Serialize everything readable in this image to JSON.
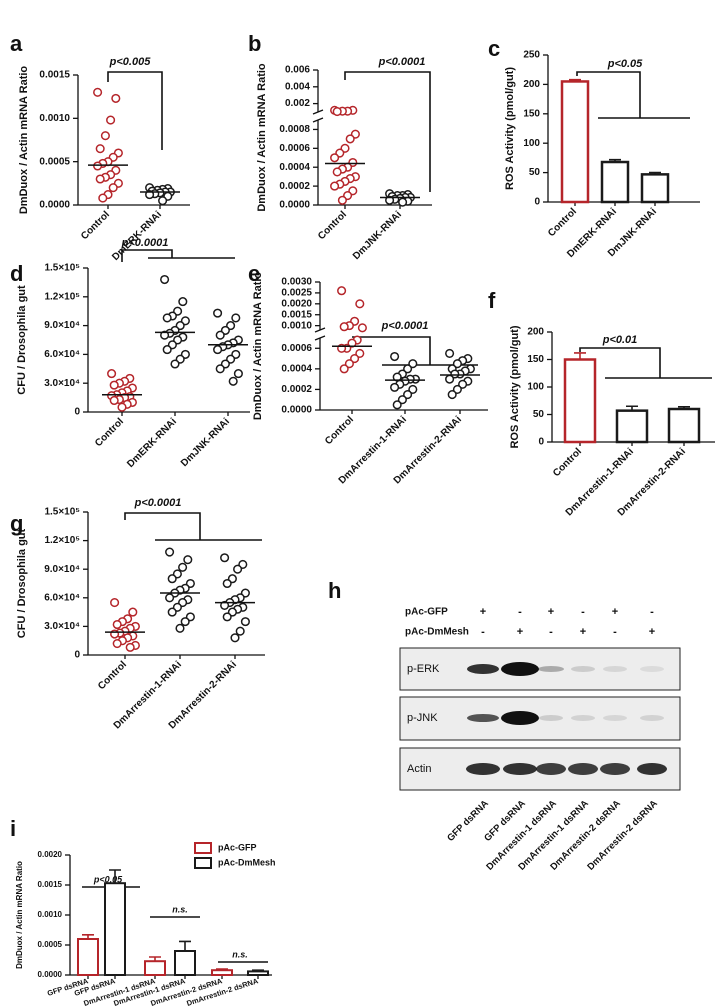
{
  "chart_data": [
    {
      "type": "dot",
      "panel": "a",
      "ylabel": "DmDuox / Actin mRNA Ratio",
      "annotations": [
        "p<0.005"
      ],
      "categories": [
        "Control",
        "DmERK-RNAi"
      ],
      "colors": [
        "#b5252a",
        "#1a1a1a"
      ],
      "values": [
        [
          0.0013,
          0.00123,
          0.00098,
          0.0008,
          0.00065,
          0.0006,
          0.00055,
          0.0005,
          0.00048,
          0.00045,
          0.0004,
          0.00035,
          0.00032,
          0.0003,
          0.00025,
          0.0002,
          0.00012,
          8e-05
        ],
        [
          0.0002,
          0.00019,
          0.00018,
          0.00017,
          0.00016,
          0.00015,
          0.00015,
          0.00014,
          0.00013,
          0.00012,
          0.0001,
          5e-05
        ]
      ],
      "means": [
        0.00046,
        0.00015
      ],
      "ylim": [
        0,
        0.0015
      ],
      "yticks": [
        {
          "value": 0,
          "label": "0.0000"
        },
        {
          "value": 0.0005,
          "label": "0.0005"
        },
        {
          "value": 0.001,
          "label": "0.0010"
        },
        {
          "value": 0.0015,
          "label": "0.0015"
        }
      ]
    },
    {
      "type": "dot",
      "panel": "b",
      "ylabel": "DmDuox / Actin mRNA Ratio",
      "annotations": [
        "p<0.0001"
      ],
      "categories": [
        "Control",
        "DmJNK-RNAi"
      ],
      "colors": [
        "#b5252a",
        "#1a1a1a"
      ],
      "values": [
        [
          0.0012,
          0.0012,
          0.0011,
          0.0011,
          0.00105,
          0.00075,
          0.0007,
          0.0006,
          0.00055,
          0.0005,
          0.00045,
          0.0004,
          0.00038,
          0.00035,
          0.0003,
          0.00028,
          0.00025,
          0.00022,
          0.0002,
          0.00015,
          0.0001,
          5e-05
        ],
        [
          0.00012,
          0.00011,
          0.0001,
          0.0001,
          9e-05,
          8e-05,
          8e-05,
          7e-05,
          6e-05,
          5e-05,
          4e-05,
          3e-05
        ]
      ],
      "means": [
        0.00044,
        8e-05
      ],
      "segments": [
        {
          "ylim": [
            0,
            0.0009
          ],
          "yticks": [
            {
              "value": 0,
              "label": "0.0000"
            },
            {
              "value": 0.0002,
              "label": "0.0002"
            },
            {
              "value": 0.0004,
              "label": "0.0004"
            },
            {
              "value": 0.0006,
              "label": "0.0006"
            },
            {
              "value": 0.0008,
              "label": "0.0008"
            }
          ]
        },
        {
          "ylim": [
            0.001,
            0.006
          ],
          "yticks": [
            {
              "value": 0.002,
              "label": "0.002"
            },
            {
              "value": 0.004,
              "label": "0.004"
            },
            {
              "value": 0.006,
              "label": "0.006"
            }
          ]
        }
      ]
    },
    {
      "type": "bar",
      "panel": "c",
      "ylabel": "ROS Activity (pmol/gut)",
      "annotations": [
        "p<0.05"
      ],
      "categories": [
        "Control",
        "DmERK-RNAi",
        "DmJNK-RNAi"
      ],
      "colors": [
        "#b5252a",
        "#1a1a1a",
        "#1a1a1a"
      ],
      "values": [
        205,
        68,
        47
      ],
      "errors": [
        3,
        4,
        3
      ],
      "ylim": [
        0,
        250
      ],
      "yticks": [
        0,
        50,
        100,
        150,
        200,
        250
      ]
    },
    {
      "type": "dot",
      "panel": "d",
      "ylabel": "CFU / Drosophila gut",
      "annotations": [
        "p<0.0001"
      ],
      "categories": [
        "Control",
        "DmERK-RNAi",
        "DmJNK-RNAi"
      ],
      "colors": [
        "#b5252a",
        "#1a1a1a",
        "#1a1a1a"
      ],
      "values": [
        [
          40000,
          35000,
          32000,
          30000,
          28000,
          25000,
          22000,
          20000,
          18000,
          17000,
          16000,
          15000,
          13000,
          12000,
          10000,
          8000,
          5000
        ],
        [
          138000,
          115000,
          105000,
          100000,
          98000,
          95000,
          90000,
          85000,
          82000,
          80000,
          78000,
          75000,
          70000,
          65000,
          60000,
          55000,
          50000
        ],
        [
          103000,
          98000,
          90000,
          85000,
          80000,
          75000,
          72000,
          70000,
          68000,
          65000,
          60000,
          55000,
          50000,
          45000,
          40000,
          32000
        ]
      ],
      "means": [
        18000,
        83000,
        70000
      ],
      "ylim": [
        0,
        150000
      ],
      "yticks": [
        0,
        {
          "value": 30000,
          "label": "3.0×10⁴"
        },
        {
          "value": 60000,
          "label": "6.0×10⁴"
        },
        {
          "value": 90000,
          "label": "9.0×10⁴"
        },
        {
          "value": 120000,
          "label": "1.2×10⁵"
        },
        {
          "value": 150000,
          "label": "1.5×10⁵"
        }
      ]
    },
    {
      "type": "dot",
      "panel": "e",
      "ylabel": "DmDuox / Actin mRNA Ratio",
      "annotations": [
        "p<0.0001"
      ],
      "categories": [
        "Control",
        "DmArrestin-1-RNAi",
        "DmArrestin-2-RNAi"
      ],
      "colors": [
        "#b5252a",
        "#1a1a1a",
        "#1a1a1a"
      ],
      "values": [
        [
          0.0026,
          0.002,
          0.0012,
          0.001,
          0.00095,
          0.0009,
          0.00068,
          0.00065,
          0.0006,
          0.0006,
          0.00055,
          0.0005,
          0.00045,
          0.0004
        ],
        [
          0.00052,
          0.00045,
          0.0004,
          0.00035,
          0.00032,
          0.0003,
          0.0003,
          0.00028,
          0.00025,
          0.00022,
          0.0002,
          0.00015,
          0.0001,
          5e-05
        ],
        [
          0.00055,
          0.0005,
          0.00048,
          0.00045,
          0.0004,
          0.0004,
          0.00038,
          0.00035,
          0.00035,
          0.0003,
          0.00028,
          0.00025,
          0.0002,
          0.00015
        ]
      ],
      "means": [
        0.00062,
        0.00029,
        0.00034
      ],
      "segments": [
        {
          "ylim": [
            0,
            0.0007
          ],
          "yticks": [
            {
              "value": 0,
              "label": "0.0000"
            },
            {
              "value": 0.0002,
              "label": "0.0002"
            },
            {
              "value": 0.0004,
              "label": "0.0004"
            },
            {
              "value": 0.0006,
              "label": "0.0006"
            }
          ]
        },
        {
          "ylim": [
            0.0008,
            0.003
          ],
          "yticks": [
            {
              "value": 0.001,
              "label": "0.0010"
            },
            {
              "value": 0.0015,
              "label": "0.0015"
            },
            {
              "value": 0.002,
              "label": "0.0020"
            },
            {
              "value": 0.0025,
              "label": "0.0025"
            },
            {
              "value": 0.003,
              "label": "0.0030"
            }
          ]
        }
      ]
    },
    {
      "type": "bar",
      "panel": "f",
      "ylabel": "ROS Activity (pmol/gut)",
      "annotations": [
        "p<0.01"
      ],
      "categories": [
        "Control",
        "DmArrestin-1-RNAi",
        "DmArrestin-2-RNAi"
      ],
      "colors": [
        "#b5252a",
        "#1a1a1a",
        "#1a1a1a"
      ],
      "values": [
        150,
        57,
        60
      ],
      "errors": [
        12,
        8,
        4
      ],
      "ylim": [
        0,
        200
      ],
      "yticks": [
        0,
        50,
        100,
        150,
        200
      ]
    },
    {
      "type": "dot",
      "panel": "g",
      "ylabel": "CFU / Drosophila gut",
      "annotations": [
        "p<0.0001"
      ],
      "categories": [
        "Control",
        "DmArrestin-1-RNAi",
        "DmArrestin-2-RNAi"
      ],
      "colors": [
        "#b5252a",
        "#1a1a1a",
        "#1a1a1a"
      ],
      "values": [
        [
          55000,
          45000,
          38000,
          35000,
          32000,
          30000,
          28000,
          25000,
          23000,
          22000,
          20000,
          18000,
          15000,
          12000,
          10000,
          8000
        ],
        [
          108000,
          100000,
          92000,
          85000,
          80000,
          75000,
          70000,
          68000,
          65000,
          60000,
          58000,
          55000,
          50000,
          45000,
          40000,
          35000,
          28000
        ],
        [
          102000,
          95000,
          90000,
          80000,
          75000,
          65000,
          60000,
          58000,
          55000,
          52000,
          50000,
          48000,
          45000,
          40000,
          35000,
          25000,
          18000
        ]
      ],
      "means": [
        24000,
        65000,
        55000
      ],
      "ylim": [
        0,
        150000
      ],
      "yticks": [
        0,
        {
          "value": 30000,
          "label": "3.0×10⁴"
        },
        {
          "value": 60000,
          "label": "6.0×10⁴"
        },
        {
          "value": 90000,
          "label": "9.0×10⁴"
        },
        {
          "value": 120000,
          "label": "1.2×10⁵"
        },
        {
          "value": 150000,
          "label": "1.5×10⁵"
        }
      ]
    },
    {
      "type": "blot",
      "panel": "h",
      "conditions": [
        {
          "name": "pAc-GFP",
          "signs": [
            "+",
            "-",
            "+",
            "-",
            "+",
            "-"
          ]
        },
        {
          "name": "pAc-DmMesh",
          "signs": [
            "-",
            "+",
            "-",
            "+",
            "-",
            "+"
          ]
        }
      ],
      "rows": [
        "p-ERK",
        "p-JNK",
        "Actin"
      ],
      "lanes": [
        "GFP dsRNA",
        "GFP dsRNA",
        "DmArrestin-1 dsRNA",
        "DmArrestin-1 dsRNA",
        "DmArrestin-2 dsRNA",
        "DmArrestin-2 dsRNA"
      ]
    },
    {
      "type": "groupbar",
      "panel": "i",
      "ylabel": "DmDuox / Actin mRNA Ratio",
      "annotations": [
        "p<0.05",
        "n.s.",
        "n.s."
      ],
      "categories": [
        "GFP dsRNA",
        "GFP dsRNA",
        "DmArrestin-1 dsRNA",
        "DmArrestin-1 dsRNA",
        "DmArrestin-2 dsRNA",
        "DmArrestin-2 dsRNA"
      ],
      "series": [
        {
          "name": "pAc-GFP",
          "color": "#b5252a",
          "values": [
            0.0006,
            null,
            0.00023,
            null,
            8e-05,
            null
          ],
          "errors": [
            7e-05,
            null,
            7e-05,
            null,
            2e-05,
            null
          ]
        },
        {
          "name": "pAc-DmMesh",
          "color": "#1a1a1a",
          "values": [
            null,
            0.00153,
            null,
            0.0004,
            null,
            6e-05
          ],
          "errors": [
            null,
            0.00022,
            null,
            0.00016,
            null,
            2e-05
          ]
        }
      ],
      "ylim": [
        0,
        0.002
      ],
      "yticks": [
        {
          "value": 0,
          "label": "0.0000"
        },
        {
          "value": 0.0005,
          "label": "0.0005"
        },
        {
          "value": 0.001,
          "label": "0.0010"
        },
        {
          "value": 0.0015,
          "label": "0.0015"
        },
        {
          "value": 0.002,
          "label": "0.0020"
        }
      ]
    }
  ]
}
